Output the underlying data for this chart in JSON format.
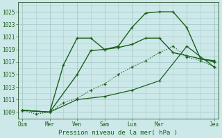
{
  "title": "",
  "xlabel": "Pression niveau de la mer( hPa )",
  "background_color": "#cce8e8",
  "grid_color": "#aacccc",
  "line_color": "#1a5e1a",
  "ylim": [
    1008.0,
    1026.5
  ],
  "yticks": [
    1009,
    1011,
    1013,
    1015,
    1017,
    1019,
    1021,
    1023,
    1025
  ],
  "xlim": [
    -0.3,
    14.3
  ],
  "xtick_positions": [
    0,
    2,
    4,
    6,
    8,
    10,
    14
  ],
  "xtick_labels": [
    "Dim",
    "Mer",
    "Ven",
    "Sam",
    "Lun",
    "Mar",
    "Jeu"
  ],
  "series": [
    {
      "x": [
        0,
        1,
        2,
        3,
        4,
        5,
        6,
        7,
        8,
        9,
        10,
        11,
        12,
        13,
        14
      ],
      "y": [
        1009.3,
        1008.7,
        1009.0,
        1010.5,
        1011.2,
        1012.5,
        1013.5,
        1015.0,
        1016.2,
        1017.2,
        1018.5,
        1019.5,
        1017.8,
        1017.2,
        1016.2
      ],
      "linestyle": ":",
      "linewidth": 0.9
    },
    {
      "x": [
        0,
        2,
        3,
        4,
        5,
        6,
        7,
        8,
        9,
        10,
        11,
        12,
        13,
        14
      ],
      "y": [
        1009.3,
        1009.0,
        1016.5,
        1020.8,
        1020.8,
        1019.0,
        1019.3,
        1019.8,
        1020.8,
        1020.8,
        1018.5,
        1018.0,
        1017.5,
        1017.2
      ],
      "linestyle": "-",
      "linewidth": 1.0
    },
    {
      "x": [
        0,
        2,
        4,
        5,
        6,
        7,
        8,
        9,
        10,
        11,
        12,
        13,
        14
      ],
      "y": [
        1009.3,
        1009.0,
        1015.0,
        1018.8,
        1019.0,
        1019.5,
        1022.5,
        1024.8,
        1025.0,
        1025.0,
        1022.5,
        1017.5,
        1017.0
      ],
      "linestyle": "-",
      "linewidth": 1.0
    },
    {
      "x": [
        0,
        2,
        4,
        6,
        8,
        10,
        12,
        14
      ],
      "y": [
        1009.3,
        1009.0,
        1011.0,
        1011.5,
        1012.5,
        1014.0,
        1019.5,
        1016.2
      ],
      "linestyle": "-",
      "linewidth": 0.9
    }
  ]
}
